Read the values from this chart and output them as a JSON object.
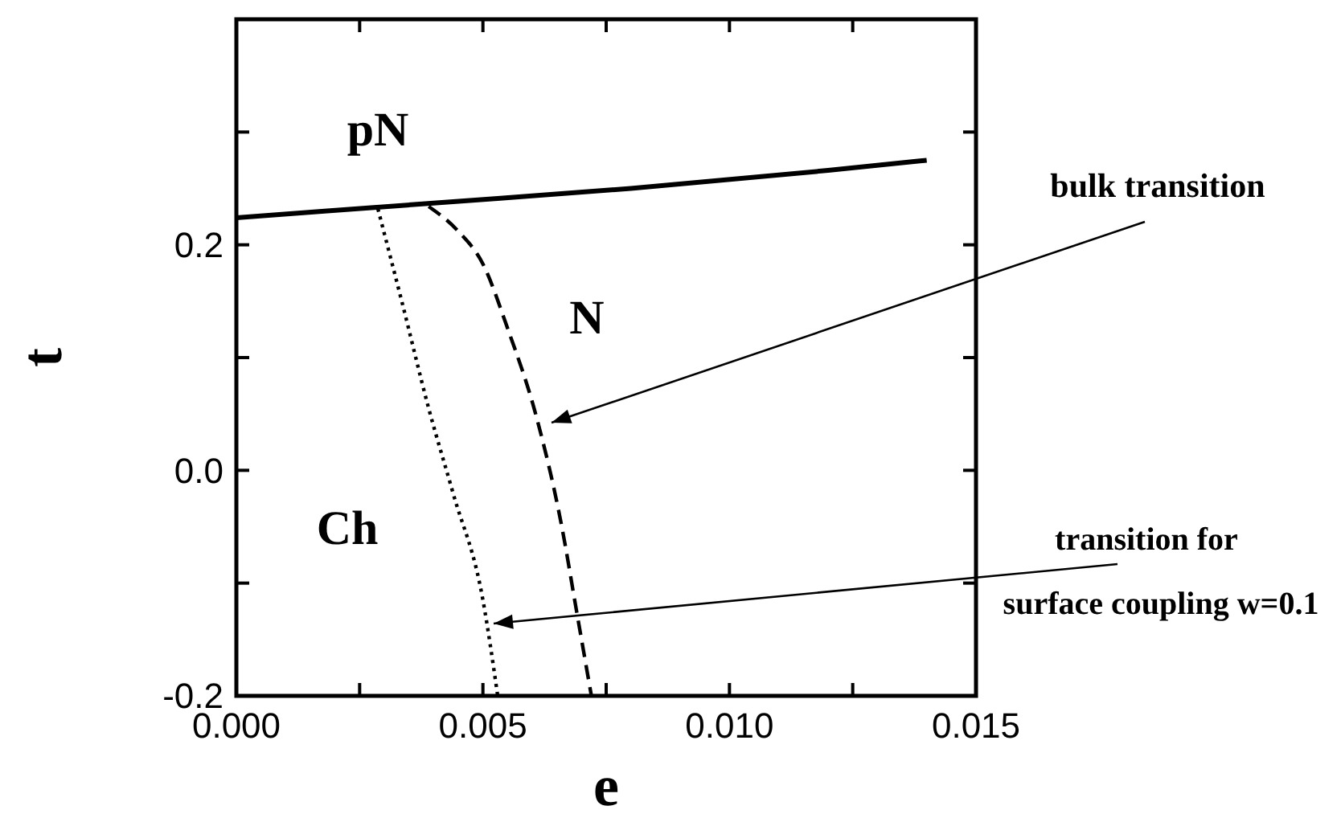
{
  "chart_data": {
    "type": "line",
    "xlabel": "e",
    "ylabel": "t",
    "xlim": [
      0,
      0.015
    ],
    "ylim": [
      -0.2,
      0.4
    ],
    "xticks": [
      {
        "value": 0,
        "label": "0.000"
      },
      {
        "value": 0.0025,
        "label": null
      },
      0.005,
      {
        "value": 0.0075,
        "label": null
      },
      {
        "value": 0.01,
        "label": "0.010"
      },
      {
        "value": 0.0125,
        "label": null
      },
      {
        "value": 0.015,
        "label": "0.015"
      }
    ],
    "yticks": [
      -0.2,
      {
        "value": -0.1,
        "label": null
      },
      {
        "value": 0,
        "label": "0.0"
      },
      {
        "value": 0.1,
        "label": null
      },
      0.2,
      {
        "value": 0.3,
        "label": null
      }
    ],
    "grid": false,
    "marker": "none",
    "series": [
      {
        "color": "#000000",
        "line_style": "solid",
        "x": [
          0,
          0.004,
          0.008,
          0.012,
          0.014
        ],
        "values": [
          0.224,
          0.237,
          0.25,
          0.266,
          0.275
        ]
      },
      {
        "color": "#000000",
        "line_style": "dashed",
        "x": [
          0.0039,
          0.0045,
          0.005,
          0.0055,
          0.0061,
          0.0066,
          0.0069,
          0.0072
        ],
        "values": [
          0.234,
          0.212,
          0.183,
          0.126,
          0.045,
          -0.05,
          -0.125,
          -0.2
        ]
      },
      {
        "color": "#000000",
        "line_style": "dotted",
        "x": [
          0.00287,
          0.00336,
          0.0039,
          0.0044,
          0.005,
          0.0053
        ],
        "values": [
          0.232,
          0.149,
          0.055,
          -0.021,
          -0.115,
          -0.2
        ]
      }
    ],
    "annotations": [
      "pN",
      "N",
      "Ch",
      "bulk transition",
      "transition for\nsurface coupling w=0.1"
    ]
  }
}
